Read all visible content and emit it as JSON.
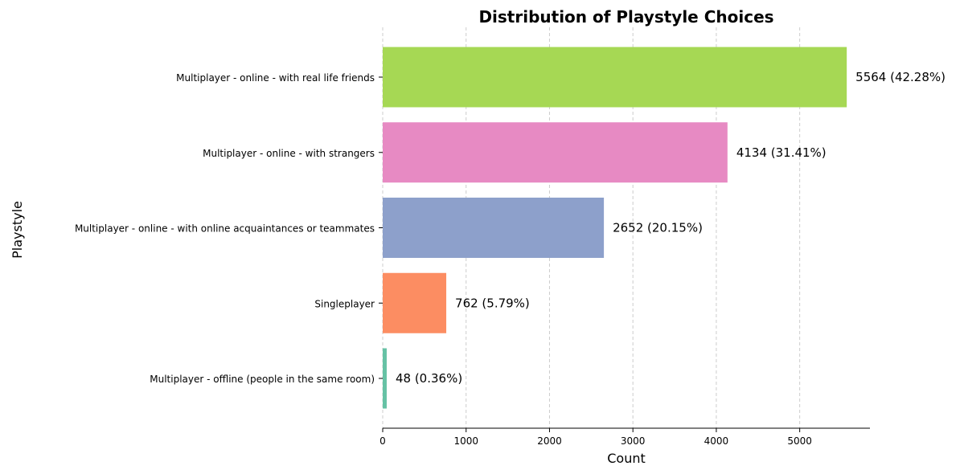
{
  "chart_data": {
    "type": "bar",
    "orientation": "horizontal",
    "title": "Distribution of Playstyle Choices",
    "xlabel": "Count",
    "ylabel": "Playstyle",
    "xlim": [
      0,
      5842
    ],
    "xticks": [
      0,
      1000,
      2000,
      3000,
      4000,
      5000
    ],
    "grid": "x, dashed",
    "categories": [
      "Multiplayer - online - with real life friends",
      "Multiplayer - online - with strangers",
      "Multiplayer - online - with online acquaintances or teammates",
      "Singleplayer",
      "Multiplayer - offline (people in the same room)"
    ],
    "values": [
      5564,
      4134,
      2652,
      762,
      48
    ],
    "data_labels": [
      "5564 (42.28%)",
      "4134 (31.41%)",
      "2652 (20.15%)",
      "762 (5.79%)",
      "48 (0.36%)"
    ],
    "colors": [
      "#a6d854",
      "#e78ac3",
      "#8da0cb",
      "#fc8d62",
      "#66c2a5"
    ]
  }
}
